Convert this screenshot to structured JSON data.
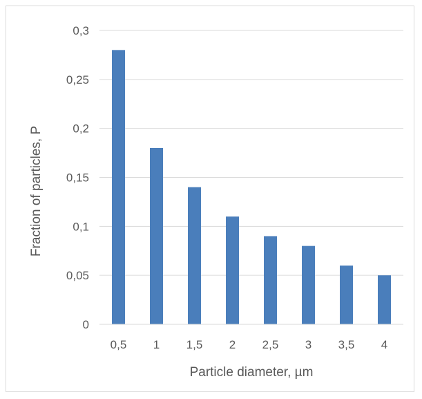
{
  "chart_data": {
    "type": "bar",
    "categories": [
      "0,5",
      "1",
      "1,5",
      "2",
      "2,5",
      "3",
      "3,5",
      "4"
    ],
    "values": [
      0.28,
      0.18,
      0.14,
      0.11,
      0.09,
      0.08,
      0.06,
      0.05
    ],
    "xlabel": "Particle diameter, µm",
    "ylabel": "Fraction of particles, P",
    "ylim": [
      0,
      0.3
    ],
    "yticks": [
      {
        "value": 0,
        "label": "0"
      },
      {
        "value": 0.05,
        "label": "0,05"
      },
      {
        "value": 0.1,
        "label": "0,1"
      },
      {
        "value": 0.15,
        "label": "0,15"
      },
      {
        "value": 0.2,
        "label": "0,2"
      },
      {
        "value": 0.25,
        "label": "0,25"
      },
      {
        "value": 0.3,
        "label": "0,3"
      }
    ],
    "grid": true,
    "legend": "none",
    "bar_color": "#4a7ebb",
    "grid_color": "#d9d9d9"
  }
}
